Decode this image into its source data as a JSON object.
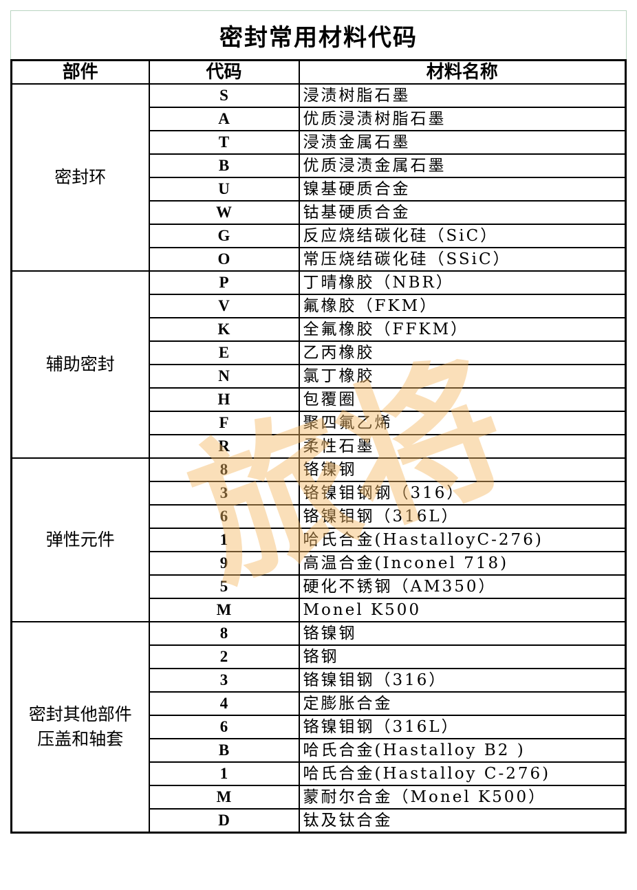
{
  "title": "密封常用材料代码",
  "headers": {
    "part": "部件",
    "code": "代码",
    "name": "材料名称"
  },
  "watermark": "旅将",
  "groups": [
    {
      "part": [
        "密封环"
      ],
      "rows": [
        {
          "code": "S",
          "name": "浸渍树脂石墨"
        },
        {
          "code": "A",
          "name": "优质浸渍树脂石墨"
        },
        {
          "code": "T",
          "name": "浸渍金属石墨"
        },
        {
          "code": "B",
          "name": "优质浸渍金属石墨"
        },
        {
          "code": "U",
          "name": "镍基硬质合金"
        },
        {
          "code": "W",
          "name": "钴基硬质合金"
        },
        {
          "code": "G",
          "name": "反应烧结碳化硅（SiC）"
        },
        {
          "code": "O",
          "name": "常压烧结碳化硅（SSiC）"
        }
      ]
    },
    {
      "part": [
        "辅助密封"
      ],
      "rows": [
        {
          "code": "P",
          "name": "丁晴橡胶（NBR）"
        },
        {
          "code": "V",
          "name": "氟橡胶（FKM）"
        },
        {
          "code": "K",
          "name": "全氟橡胶（FFKM）"
        },
        {
          "code": "E",
          "name": "乙丙橡胶"
        },
        {
          "code": "N",
          "name": "氯丁橡胶"
        },
        {
          "code": "H",
          "name": "包覆圈"
        },
        {
          "code": "F",
          "name": "聚四氟乙烯"
        },
        {
          "code": "R",
          "name": "柔性石墨"
        }
      ]
    },
    {
      "part": [
        "弹性元件"
      ],
      "rows": [
        {
          "code": "8",
          "name": "铬镍钢"
        },
        {
          "code": "3",
          "name": "铬镍钼钢钢（316）"
        },
        {
          "code": "6",
          "name": "铬镍钼钢（316L）"
        },
        {
          "code": "1",
          "name": "哈氏合金(HastalloyC-276)"
        },
        {
          "code": "9",
          "name": "高温合金(Inconel 718)"
        },
        {
          "code": "5",
          "name": "硬化不锈钢（AM350）"
        },
        {
          "code": "M",
          "name": "Monel K500"
        }
      ]
    },
    {
      "part": [
        "密封其他部件",
        "压盖和轴套"
      ],
      "rows": [
        {
          "code": "8",
          "name": "铬镍钢"
        },
        {
          "code": "2",
          "name": "铬钢"
        },
        {
          "code": "3",
          "name": "铬镍钼钢（316）"
        },
        {
          "code": "4",
          "name": "定膨胀合金"
        },
        {
          "code": "6",
          "name": "铬镍钼钢（316L）"
        },
        {
          "code": "B",
          "name": "哈氏合金(Hastalloy B2 )"
        },
        {
          "code": "1",
          "name": "哈氏合金(Hastalloy C-276)"
        },
        {
          "code": "M",
          "name": "蒙耐尔合金（Monel K500）"
        },
        {
          "code": "D",
          "name": "钛及钛合金"
        }
      ]
    }
  ]
}
